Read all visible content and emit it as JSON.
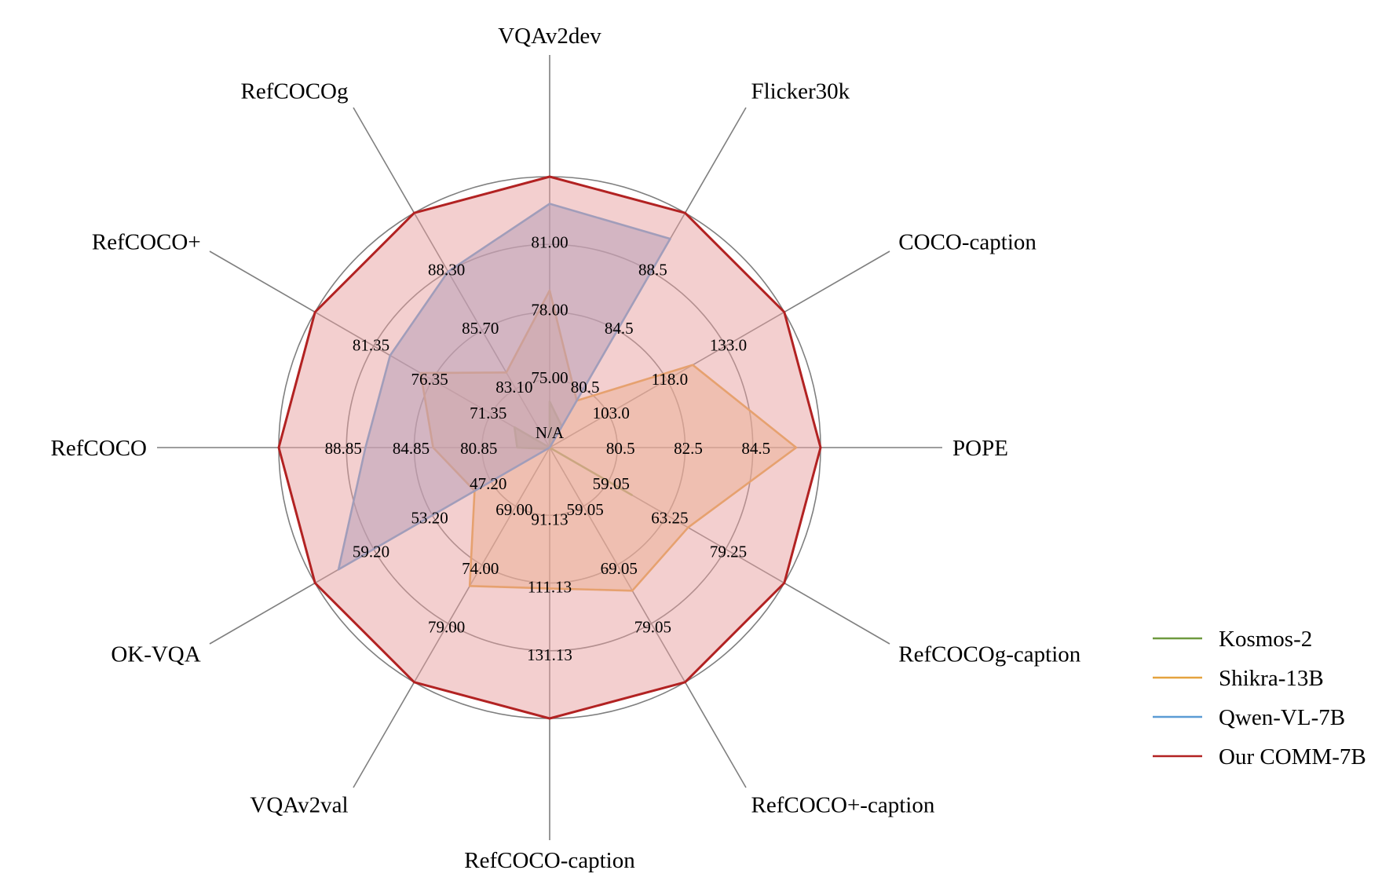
{
  "chart_data": {
    "type": "radar",
    "title": "",
    "levels": 4,
    "axes": [
      {
        "name": "VQAv2dev",
        "ticks": [
          "N/A",
          "75.00",
          "78.00",
          "81.00"
        ],
        "max": 81.0
      },
      {
        "name": "Flicker30k",
        "ticks": [
          "",
          "80.5",
          "84.5",
          "88.5"
        ],
        "max": 88.5
      },
      {
        "name": "COCO-caption",
        "ticks": [
          "",
          "103.0",
          "118.0",
          "133.0"
        ],
        "max": 133.0
      },
      {
        "name": "POPE",
        "ticks": [
          "",
          "80.5",
          "82.5",
          "84.5"
        ],
        "max": 84.5
      },
      {
        "name": "RefCOCOg-caption",
        "ticks": [
          "",
          "59.05",
          "63.25",
          "79.25"
        ],
        "max": 79.25
      },
      {
        "name": "RefCOCO+-caption",
        "ticks": [
          "",
          "59.05",
          "69.05",
          "79.05"
        ],
        "max": 79.05
      },
      {
        "name": "RefCOCO-caption",
        "ticks": [
          "",
          "91.13",
          "111.13",
          "131.13"
        ],
        "max": 131.13
      },
      {
        "name": "VQAv2val",
        "ticks": [
          "",
          "69.00",
          "74.00",
          "79.00"
        ],
        "max": 79.0
      },
      {
        "name": "OK-VQA",
        "ticks": [
          "",
          "47.20",
          "53.20",
          "59.20"
        ],
        "max": 59.2
      },
      {
        "name": "RefCOCO",
        "ticks": [
          "",
          "80.85",
          "84.85",
          "88.85"
        ],
        "max": 88.85
      },
      {
        "name": "RefCOCO+",
        "ticks": [
          "",
          "71.35",
          "76.35",
          "81.35"
        ],
        "max": 81.35
      },
      {
        "name": "RefCOCOg",
        "ticks": [
          "",
          "83.10",
          "85.70",
          "88.30"
        ],
        "max": 88.3
      }
    ],
    "series": [
      {
        "name": "Kosmos-2",
        "color": "#6e9a3f",
        "fill": "#6e9a3f",
        "fill_opacity": 0.6,
        "values": [
          0.17,
          0.09,
          0.0,
          0.0,
          0.35,
          0.0,
          0.0,
          0.0,
          0.01,
          0.12,
          0.15,
          0.0
        ]
      },
      {
        "name": "Shikra-13B",
        "color": "#e5a33f",
        "fill": "#f0bf87",
        "fill_opacity": 0.5,
        "values": [
          0.58,
          0.2,
          0.61,
          0.91,
          0.59,
          0.61,
          0.52,
          0.59,
          0.32,
          0.43,
          0.55,
          0.32
        ]
      },
      {
        "name": "Qwen-VL-7B",
        "color": "#5b9bd5",
        "fill": "#8a9fd0",
        "fill_opacity": 0.55,
        "values": [
          0.9,
          0.89,
          0.0,
          0.0,
          0.0,
          0.0,
          0.0,
          0.0,
          0.9,
          0.68,
          0.68,
          0.75
        ]
      },
      {
        "name": "Our COMM-7B",
        "color": "#b22222",
        "fill": "#e8a0a0",
        "fill_opacity": 0.5,
        "values": [
          1.0,
          1.0,
          1.0,
          1.0,
          1.0,
          1.0,
          1.0,
          1.0,
          1.0,
          1.0,
          1.0,
          1.0
        ]
      }
    ],
    "legend_position": "bottom-right"
  }
}
